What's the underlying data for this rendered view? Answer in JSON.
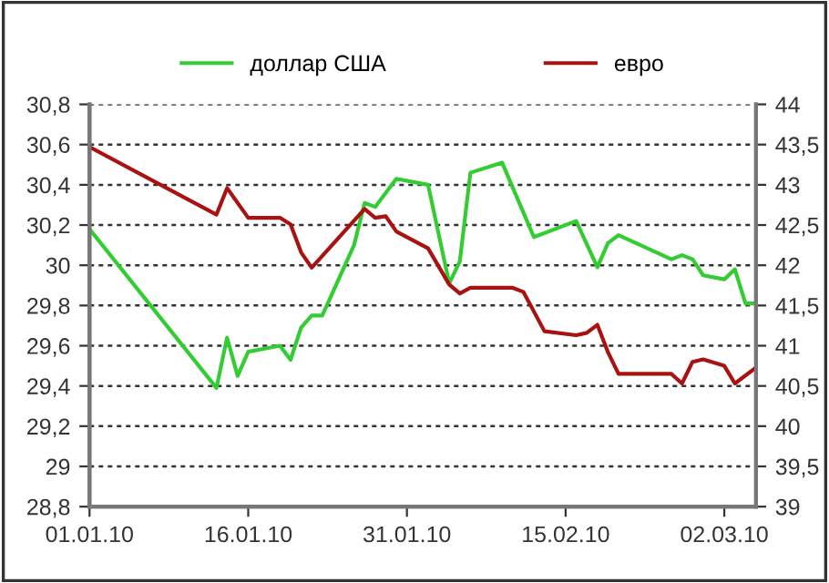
{
  "chart_data": {
    "type": "line",
    "legend": "top",
    "grid": "y",
    "marker": "none",
    "line_style": "solid",
    "xlim": [
      "2010-01-01",
      "2010-03-05"
    ],
    "xticks": [
      {
        "value": "2010-01-01",
        "label": "01.01.10"
      },
      {
        "value": "2010-01-16",
        "label": "16.01.10"
      },
      {
        "value": "2010-01-31",
        "label": "31.01.10"
      },
      {
        "value": "2010-02-15",
        "label": "15.02.10"
      },
      {
        "value": "2010-03-02",
        "label": "02.03.10"
      }
    ],
    "ylim": [
      28.8,
      30.8
    ],
    "yticks": [
      {
        "value": 28.8,
        "label": "28,8"
      },
      {
        "value": 29,
        "label": "29"
      },
      {
        "value": 29.2,
        "label": "29,2"
      },
      {
        "value": 29.4,
        "label": "29,4"
      },
      {
        "value": 29.6,
        "label": "29,6"
      },
      {
        "value": 29.8,
        "label": "29,8"
      },
      {
        "value": 30,
        "label": "30"
      },
      {
        "value": 30.2,
        "label": "30,2"
      },
      {
        "value": 30.4,
        "label": "30,4"
      },
      {
        "value": 30.6,
        "label": "30,6"
      },
      {
        "value": 30.8,
        "label": "30,8"
      }
    ],
    "y2lim": [
      39,
      44
    ],
    "y2ticks": [
      {
        "value": 39,
        "label": "39"
      },
      {
        "value": 39.5,
        "label": "39,5"
      },
      {
        "value": 40,
        "label": "40"
      },
      {
        "value": 40.5,
        "label": "40,5"
      },
      {
        "value": 41,
        "label": "41"
      },
      {
        "value": 41.5,
        "label": "41,5"
      },
      {
        "value": 42,
        "label": "42"
      },
      {
        "value": 42.5,
        "label": "42,5"
      },
      {
        "value": 43,
        "label": "43"
      },
      {
        "value": 43.5,
        "label": "43,5"
      },
      {
        "value": 44,
        "label": "44"
      }
    ],
    "series": [
      {
        "name": "доллар США",
        "color": "#33cc33",
        "x": [
          "2010-01-01",
          "2010-01-13",
          "2010-01-14",
          "2010-01-15",
          "2010-01-16",
          "2010-01-18",
          "2010-01-19",
          "2010-01-20",
          "2010-01-21",
          "2010-01-22",
          "2010-01-23",
          "2010-01-26",
          "2010-01-27",
          "2010-01-28",
          "2010-01-30",
          "2010-02-02",
          "2010-02-04",
          "2010-02-05",
          "2010-02-06",
          "2010-02-09",
          "2010-02-12",
          "2010-02-16",
          "2010-02-18",
          "2010-02-19",
          "2010-02-20",
          "2010-02-25",
          "2010-02-26",
          "2010-02-27",
          "2010-02-28",
          "2010-03-02",
          "2010-03-03",
          "2010-03-04",
          "2010-03-05"
        ],
        "values": [
          30.18,
          29.39,
          29.64,
          29.45,
          29.57,
          29.59,
          29.6,
          29.53,
          29.69,
          29.75,
          29.75,
          30.1,
          30.31,
          30.29,
          30.43,
          30.4,
          29.91,
          30.02,
          30.46,
          30.51,
          30.14,
          30.22,
          29.99,
          30.11,
          30.15,
          30.03,
          30.05,
          30.03,
          29.95,
          29.93,
          29.98,
          29.81,
          29.81
        ]
      },
      {
        "name": "евро",
        "color": "#aa1111",
        "axis": "y2",
        "x": [
          "2010-01-01",
          "2010-01-13",
          "2010-01-14",
          "2010-01-16",
          "2010-01-19",
          "2010-01-20",
          "2010-01-21",
          "2010-01-22",
          "2010-01-27",
          "2010-01-28",
          "2010-01-29",
          "2010-01-30",
          "2010-02-02",
          "2010-02-04",
          "2010-02-05",
          "2010-02-06",
          "2010-02-10",
          "2010-02-11",
          "2010-02-13",
          "2010-02-16",
          "2010-02-17",
          "2010-02-18",
          "2010-02-19",
          "2010-02-20",
          "2010-02-25",
          "2010-02-26",
          "2010-02-27",
          "2010-02-28",
          "2010-03-02",
          "2010-03-03",
          "2010-03-05"
        ],
        "values": [
          43.47,
          42.63,
          42.96,
          42.59,
          42.59,
          42.51,
          42.16,
          41.97,
          42.7,
          42.59,
          42.61,
          42.42,
          42.21,
          41.76,
          41.65,
          41.72,
          41.72,
          41.67,
          41.18,
          41.13,
          41.16,
          41.26,
          40.92,
          40.65,
          40.65,
          40.53,
          40.8,
          40.83,
          40.75,
          40.53,
          40.73
        ]
      }
    ]
  }
}
